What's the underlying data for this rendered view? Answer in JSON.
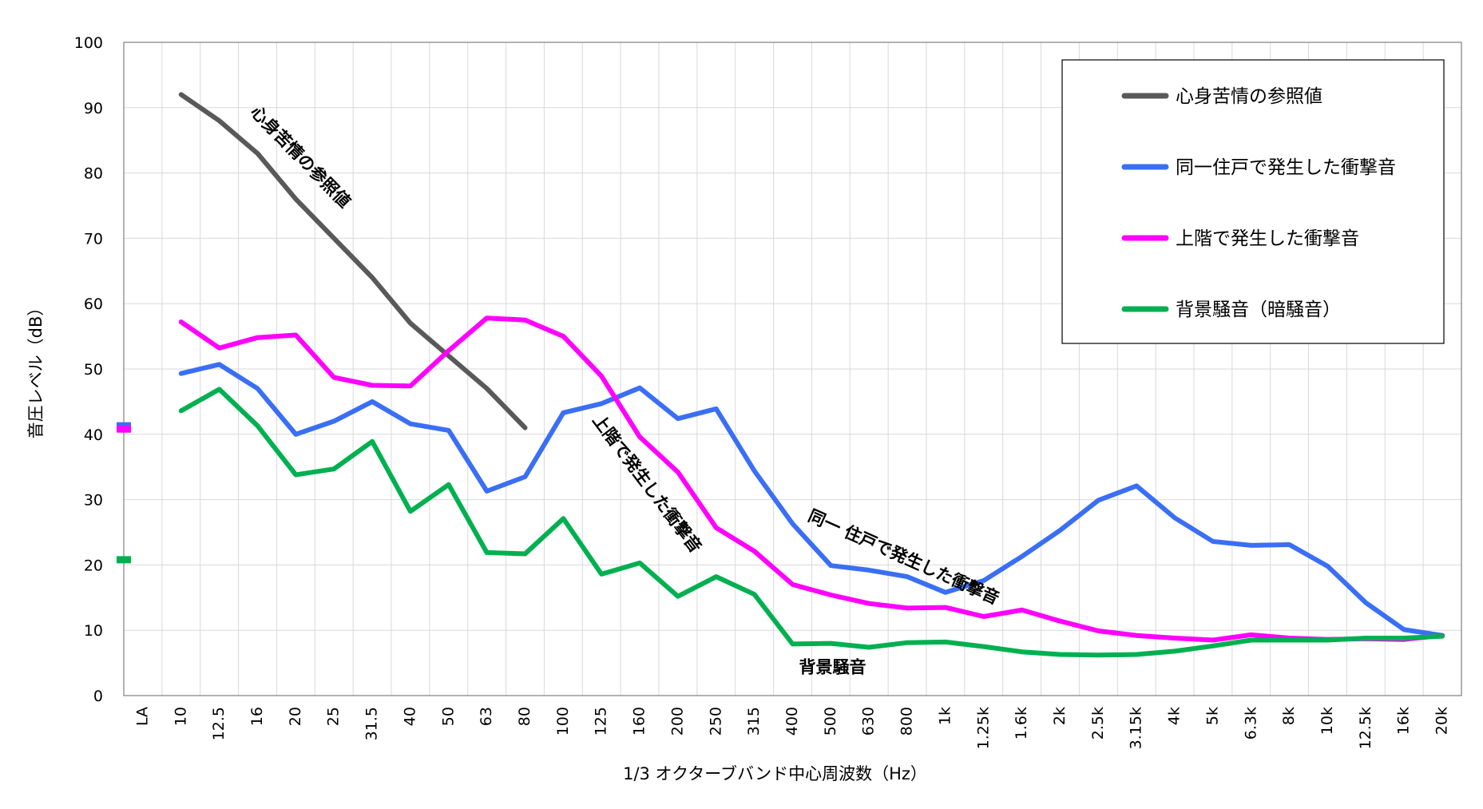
{
  "chart_data": {
    "type": "line",
    "xlabel": "1/3 オクターブバンド中心周波数（Hz）",
    "ylabel": "音圧レベル（dB）",
    "ylim": [
      0,
      100
    ],
    "yticks": [
      0,
      10,
      20,
      30,
      40,
      50,
      60,
      70,
      80,
      90,
      100
    ],
    "grid": true,
    "legend_position": "top-right",
    "categories": [
      "LA",
      "10",
      "12.5",
      "16",
      "20",
      "25",
      "31.5",
      "40",
      "50",
      "63",
      "80",
      "100",
      "125",
      "160",
      "200",
      "250",
      "315",
      "400",
      "500",
      "630",
      "800",
      "1k",
      "1.25k",
      "1.6k",
      "2k",
      "2.5k",
      "3.15k",
      "4k",
      "5k",
      "6.3k",
      "8k",
      "10k",
      "12.5k",
      "16k",
      "20k"
    ],
    "series": [
      {
        "name": "心身苦情の参照値",
        "color": "#595959",
        "la_value": null,
        "values": [
          null,
          92,
          88,
          83,
          76,
          70,
          64,
          57,
          52,
          47,
          41,
          null,
          null,
          null,
          null,
          null,
          null,
          null,
          null,
          null,
          null,
          null,
          null,
          null,
          null,
          null,
          null,
          null,
          null,
          null,
          null,
          null,
          null,
          null,
          null
        ]
      },
      {
        "name": "同一住戸で発生した衝撃音",
        "color": "#3a6ff5",
        "la_value": 41.3,
        "values": [
          null,
          49.3,
          50.7,
          47,
          40,
          42,
          45,
          41.6,
          40.6,
          31.3,
          33.5,
          43.3,
          44.7,
          47.1,
          42.4,
          43.9,
          34.4,
          26.3,
          19.9,
          19.2,
          18.2,
          15.8,
          17.6,
          21.3,
          25.3,
          29.9,
          32.1,
          27.2,
          23.6,
          23,
          23.1,
          19.8,
          14.2,
          10.1,
          9.2
        ]
      },
      {
        "name": "上階で発生した衝撃音",
        "color": "#ff00ff",
        "la_value": 40.8,
        "values": [
          null,
          57.2,
          53.2,
          54.8,
          55.2,
          48.7,
          47.5,
          47.4,
          52.8,
          57.8,
          57.5,
          55,
          48.9,
          39.6,
          34.2,
          25.7,
          22.1,
          17,
          15.4,
          14.1,
          13.4,
          13.5,
          12.1,
          13.1,
          11.4,
          9.9,
          9.2,
          8.8,
          8.5,
          9.3,
          8.8,
          8.6,
          8.7,
          8.6,
          9.2
        ]
      },
      {
        "name": "背景騒音（暗騒音）",
        "color": "#00b050",
        "la_value": 20.8,
        "values": [
          null,
          43.6,
          46.9,
          41.3,
          33.8,
          34.7,
          38.9,
          28.2,
          32.3,
          21.9,
          21.7,
          27.1,
          18.6,
          20.3,
          15.2,
          18.2,
          15.5,
          7.9,
          8,
          7.4,
          8.1,
          8.2,
          7.5,
          6.7,
          6.3,
          6.2,
          6.3,
          6.8,
          7.6,
          8.5,
          8.5,
          8.5,
          8.8,
          8.8,
          9.1
        ]
      }
    ],
    "annotations": [
      {
        "text": "心身苦情の参照値",
        "series": 0,
        "color": "#000000"
      },
      {
        "text": "上階で発生した衝撃音",
        "series": 2,
        "color": "#ff00ff"
      },
      {
        "text": "同一 住戸で発生した衝撃音",
        "series": 1,
        "color": "#0000ff"
      },
      {
        "text": "背景騒音",
        "series": 3,
        "color": "#00a040"
      }
    ]
  }
}
